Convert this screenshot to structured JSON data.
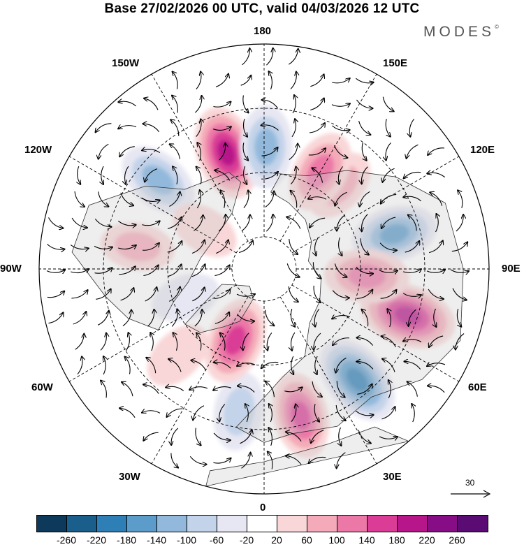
{
  "title": "Base 27/02/2026 00 UTC, valid 04/03/2026 12 UTC",
  "brand": "MODES",
  "brand_mark": "©",
  "longitude_labels": {
    "n180": "180",
    "e150": "150E",
    "e120": "120E",
    "e90": "90E",
    "e60": "60E",
    "e30": "30E",
    "s0": "0",
    "w30": "30W",
    "w60": "60W",
    "w90": "90W",
    "w120": "120W",
    "w150": "150W"
  },
  "reference_vector": {
    "label": "30"
  },
  "colorbar": {
    "colors": [
      "#0d3a5a",
      "#1a5e8c",
      "#2e7fb5",
      "#5b9ccb",
      "#92b9dc",
      "#c3d3e9",
      "#e7e7f3",
      "#ffffff",
      "#f9d7d8",
      "#f4aab8",
      "#ec78a8",
      "#da3c96",
      "#b7158a",
      "#870d86",
      "#5a0b74"
    ],
    "ticks": [
      "-260",
      "-220",
      "-180",
      "-140",
      "-100",
      "-60",
      "-20",
      "20",
      "60",
      "100",
      "140",
      "180",
      "220",
      "260"
    ]
  },
  "anomaly_centers": [
    {
      "name": "center-w160-pos",
      "lon": -162,
      "lat": 52,
      "value": 200
    },
    {
      "name": "center-180-neg",
      "lon": 179,
      "lat": 52,
      "value": -130
    },
    {
      "name": "center-e140-pos",
      "lon": 138,
      "lat": 55,
      "value": 80
    },
    {
      "name": "center-e150-pos2",
      "lon": 150,
      "lat": 55,
      "value": 130
    },
    {
      "name": "center-e110-neg",
      "lon": 105,
      "lat": 48,
      "value": -150
    },
    {
      "name": "center-e75-pos",
      "lon": 72,
      "lat": 43,
      "value": 220
    },
    {
      "name": "center-e85-pos",
      "lon": 86,
      "lat": 58,
      "value": 140
    },
    {
      "name": "center-e40-neg",
      "lon": 40,
      "lat": 45,
      "value": -200
    },
    {
      "name": "center-e15-pos",
      "lon": 14,
      "lat": 43,
      "value": 150
    },
    {
      "name": "center-w10-neg",
      "lon": -10,
      "lat": 45,
      "value": -100
    },
    {
      "name": "center-w20-pos",
      "lon": -22,
      "lat": 66,
      "value": 160
    },
    {
      "name": "center-w45-pos",
      "lon": -45,
      "lat": 52,
      "value": 60
    },
    {
      "name": "center-w105-pos",
      "lon": -100,
      "lat": 50,
      "value": 70
    },
    {
      "name": "center-w130-neg",
      "lon": -130,
      "lat": 47,
      "value": -130
    },
    {
      "name": "center-w125-pos",
      "lon": -123,
      "lat": 68,
      "value": 40
    },
    {
      "name": "center-w70-neg",
      "lon": -70,
      "lat": 64,
      "value": -40
    }
  ],
  "circulation_centers": [
    {
      "name": "circ-w160",
      "lon": -162,
      "lat": 52,
      "sense": 1
    },
    {
      "name": "circ-180",
      "lon": 179,
      "lat": 52,
      "sense": -1
    },
    {
      "name": "circ-e110",
      "lon": 105,
      "lat": 48,
      "sense": -1
    },
    {
      "name": "circ-e75",
      "lon": 72,
      "lat": 43,
      "sense": 1
    },
    {
      "name": "circ-e40",
      "lon": 40,
      "lat": 45,
      "sense": -1
    },
    {
      "name": "circ-e15",
      "lon": 14,
      "lat": 43,
      "sense": 1
    },
    {
      "name": "circ-w10",
      "lon": -10,
      "lat": 45,
      "sense": -1
    },
    {
      "name": "circ-w130",
      "lon": -130,
      "lat": 47,
      "sense": -1
    },
    {
      "name": "circ-e150",
      "lon": 150,
      "lat": 55,
      "sense": 1
    },
    {
      "name": "circ-w20",
      "lon": -22,
      "lat": 66,
      "sense": 1
    }
  ]
}
